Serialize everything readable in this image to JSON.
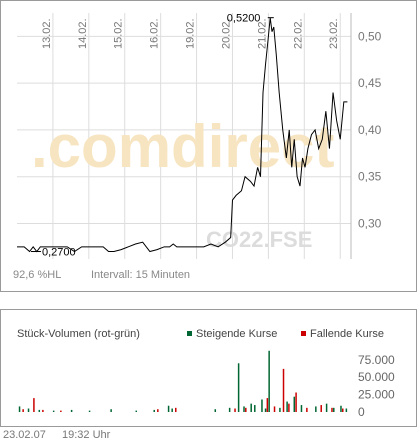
{
  "footer": {
    "date": "23.02.07",
    "time": "19:32 Uhr"
  },
  "price_panel": {
    "range_label": "92,6 %HL",
    "interval_label": "Intervall: 15 Minuten",
    "watermark": ".comdirect",
    "symbol_watermark": "CO22.FSE"
  },
  "volume_panel": {
    "title": "Stück-Volumen (rot-grün)",
    "legend_up": "Steigende Kurse",
    "legend_down": "Fallende Kurse"
  },
  "colors": {
    "up": "#006633",
    "down": "#cc0000",
    "line": "#000000",
    "grid": "#dddddd"
  },
  "chart_data": [
    {
      "type": "line",
      "title": "",
      "x_tick_labels": [
        "13.02.",
        "14.02.",
        "15.02.",
        "16.02.",
        "19.02.",
        "20.02.",
        "21.02.",
        "22.02.",
        "23.02."
      ],
      "y_ticks": [
        0.3,
        0.35,
        0.4,
        0.45,
        0.5
      ],
      "y_tick_labels": [
        "0,30",
        "0,35",
        "0,40",
        "0,45",
        "0,50"
      ],
      "ylim": [
        0.262,
        0.525
      ],
      "x_unit": "trading days from 12.02.",
      "xlim": [
        0,
        9.3
      ],
      "annotations": [
        {
          "label": "0,5200",
          "x": 7.15,
          "y": 0.52,
          "kind": "high"
        },
        {
          "label": "0,2700",
          "x": 0.5,
          "y": 0.27,
          "kind": "low"
        }
      ],
      "series": [
        {
          "x": [
            0,
            0.2,
            0.35,
            0.45,
            0.55,
            0.65,
            0.8,
            1.0,
            1.2,
            1.4,
            1.6,
            1.8,
            2.0,
            2.2,
            2.4,
            2.55,
            2.7,
            2.9,
            3.1,
            3.3,
            3.5,
            3.7,
            3.9,
            4.1,
            4.25,
            4.35,
            4.45,
            4.6,
            4.8,
            5.0,
            5.2,
            5.4,
            5.6,
            5.8,
            5.95,
            6.0,
            6.1,
            6.25,
            6.35,
            6.5,
            6.6,
            6.7,
            6.78,
            6.85,
            6.92,
            7.0,
            7.05,
            7.1,
            7.15,
            7.22,
            7.3,
            7.4,
            7.5,
            7.58,
            7.65,
            7.72,
            7.8,
            7.88,
            7.95,
            8.02,
            8.1,
            8.2,
            8.3,
            8.4,
            8.5,
            8.6,
            8.7,
            8.8,
            8.9,
            9.0,
            9.1,
            9.2
          ],
          "y": [
            0.275,
            0.275,
            0.27,
            0.275,
            0.27,
            0.275,
            0.275,
            0.275,
            0.275,
            0.275,
            0.27,
            0.275,
            0.275,
            0.275,
            0.275,
            0.27,
            0.27,
            0.272,
            0.275,
            0.278,
            0.28,
            0.27,
            0.272,
            0.275,
            0.275,
            0.278,
            0.275,
            0.275,
            0.275,
            0.275,
            0.275,
            0.278,
            0.275,
            0.28,
            0.285,
            0.325,
            0.33,
            0.335,
            0.35,
            0.345,
            0.34,
            0.36,
            0.35,
            0.44,
            0.47,
            0.5,
            0.52,
            0.505,
            0.51,
            0.48,
            0.44,
            0.4,
            0.37,
            0.4,
            0.36,
            0.39,
            0.35,
            0.34,
            0.37,
            0.36,
            0.38,
            0.395,
            0.4,
            0.38,
            0.39,
            0.42,
            0.38,
            0.44,
            0.41,
            0.39,
            0.43,
            0.43
          ]
        }
      ]
    },
    {
      "type": "bar",
      "title": "",
      "y_ticks": [
        0,
        25000,
        50000,
        75000
      ],
      "y_tick_labels": [
        "0",
        "25.000",
        "50.000",
        "75.000"
      ],
      "ylim": [
        0,
        92000
      ],
      "x_unit": "trading days from 12.02.",
      "xlim": [
        0,
        9.3
      ],
      "series": [
        {
          "name": "Steigende Kurse",
          "x": [
            0.05,
            0.3,
            0.6,
            1.0,
            1.5,
            2.0,
            2.6,
            3.3,
            3.8,
            4.2,
            4.3,
            5.5,
            5.9,
            6.15,
            6.3,
            6.5,
            6.6,
            6.8,
            6.9,
            7.0,
            7.3,
            7.5,
            7.7,
            7.9,
            8.3,
            8.6,
            8.8,
            9.0,
            9.15
          ],
          "y": [
            8000,
            5000,
            3000,
            2000,
            3000,
            2000,
            4000,
            2000,
            3000,
            9000,
            5000,
            4000,
            6000,
            70000,
            8000,
            12000,
            10000,
            18000,
            5000,
            88000,
            6000,
            15000,
            22000,
            10000,
            8000,
            12000,
            6000,
            9000,
            5000
          ]
        },
        {
          "name": "Fallende Kurse",
          "x": [
            0.15,
            0.45,
            0.7,
            1.2,
            3.9,
            4.4,
            6.05,
            6.35,
            6.95,
            7.15,
            7.4,
            7.55,
            7.75,
            8.05,
            8.45,
            8.75,
            9.05
          ],
          "y": [
            4000,
            20000,
            3000,
            2000,
            4000,
            6000,
            5000,
            6000,
            20000,
            8000,
            62000,
            12000,
            28000,
            6000,
            10000,
            6000,
            5000
          ]
        }
      ]
    }
  ]
}
